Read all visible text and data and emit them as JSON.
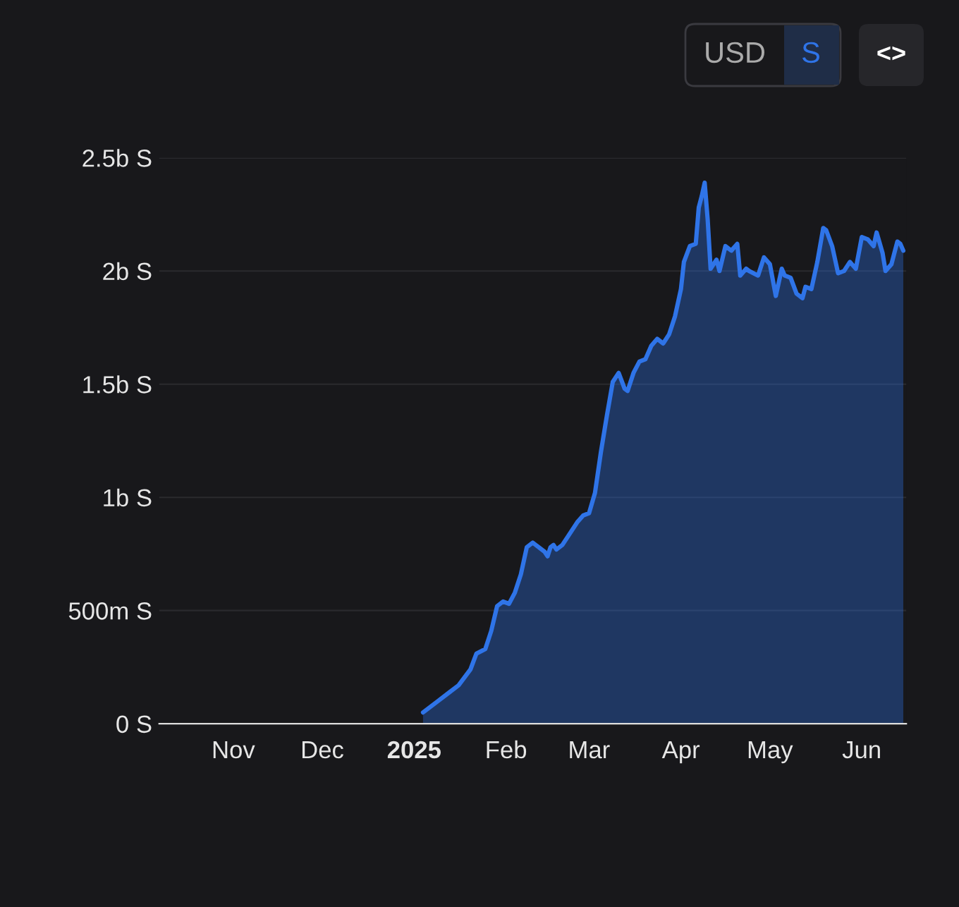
{
  "chart_data": {
    "type": "area",
    "x": [
      "2025-01-04",
      "2025-01-09",
      "2025-01-13",
      "2025-01-16",
      "2025-01-20",
      "2025-01-22",
      "2025-01-25",
      "2025-01-27",
      "2025-01-29",
      "2025-01-31",
      "2025-02-02",
      "2025-02-04",
      "2025-02-06",
      "2025-02-08",
      "2025-02-10",
      "2025-02-11",
      "2025-02-14",
      "2025-02-15",
      "2025-02-16",
      "2025-02-17",
      "2025-02-18",
      "2025-02-20",
      "2025-02-22",
      "2025-02-25",
      "2025-02-27",
      "2025-03-01",
      "2025-03-03",
      "2025-03-05",
      "2025-03-07",
      "2025-03-09",
      "2025-03-11",
      "2025-03-13",
      "2025-03-14",
      "2025-03-16",
      "2025-03-18",
      "2025-03-20",
      "2025-03-22",
      "2025-03-24",
      "2025-03-26",
      "2025-03-28",
      "2025-03-30",
      "2025-04-01",
      "2025-04-02",
      "2025-04-04",
      "2025-04-06",
      "2025-04-07",
      "2025-04-08",
      "2025-04-09",
      "2025-04-10",
      "2025-04-11",
      "2025-04-13",
      "2025-04-14",
      "2025-04-16",
      "2025-04-18",
      "2025-04-20",
      "2025-04-21",
      "2025-04-23",
      "2025-04-24",
      "2025-04-27",
      "2025-04-29",
      "2025-05-01",
      "2025-05-03",
      "2025-05-05",
      "2025-05-06",
      "2025-05-08",
      "2025-05-10",
      "2025-05-12",
      "2025-05-13",
      "2025-05-15",
      "2025-05-17",
      "2025-05-19",
      "2025-05-20",
      "2025-05-22",
      "2025-05-24",
      "2025-05-26",
      "2025-05-28",
      "2025-05-30",
      "2025-06-01",
      "2025-06-03",
      "2025-06-05",
      "2025-06-06",
      "2025-06-08",
      "2025-06-09",
      "2025-06-11",
      "2025-06-13",
      "2025-06-14",
      "2025-06-15"
    ],
    "series": [
      {
        "color": "#2f74e8",
        "values": [
          50000000,
          100000000,
          140000000,
          170000000,
          240000000,
          310000000,
          330000000,
          410000000,
          520000000,
          540000000,
          530000000,
          580000000,
          660000000,
          780000000,
          800000000,
          790000000,
          760000000,
          740000000,
          780000000,
          790000000,
          770000000,
          790000000,
          830000000,
          890000000,
          920000000,
          930000000,
          1020000000,
          1200000000,
          1360000000,
          1510000000,
          1550000000,
          1480000000,
          1470000000,
          1550000000,
          1600000000,
          1610000000,
          1670000000,
          1700000000,
          1680000000,
          1720000000,
          1800000000,
          1920000000,
          2040000000,
          2110000000,
          2120000000,
          2280000000,
          2330000000,
          2390000000,
          2230000000,
          2010000000,
          2050000000,
          2000000000,
          2110000000,
          2090000000,
          2120000000,
          1980000000,
          2010000000,
          2000000000,
          1980000000,
          2060000000,
          2030000000,
          1890000000,
          2010000000,
          1980000000,
          1970000000,
          1900000000,
          1880000000,
          1930000000,
          1920000000,
          2040000000,
          2190000000,
          2180000000,
          2110000000,
          1990000000,
          2000000000,
          2040000000,
          2010000000,
          2150000000,
          2140000000,
          2110000000,
          2170000000,
          2080000000,
          2000000000,
          2030000000,
          2130000000,
          2120000000,
          2090000000
        ]
      }
    ],
    "xlim": [
      "2024-10-07",
      "2025-06-16"
    ],
    "xticks": [
      {
        "value": "2024-11-01",
        "label": "Nov"
      },
      {
        "value": "2024-12-01",
        "label": "Dec"
      },
      {
        "value": "2025-01-01",
        "label": "2025"
      },
      {
        "value": "2025-02-01",
        "label": "Feb"
      },
      {
        "value": "2025-03-01",
        "label": "Mar"
      },
      {
        "value": "2025-04-01",
        "label": "Apr"
      },
      {
        "value": "2025-05-01",
        "label": "May"
      },
      {
        "value": "2025-06-01",
        "label": "Jun"
      }
    ],
    "ylim": [
      0,
      2500000000
    ],
    "yticks": [
      {
        "value": 0,
        "label": "0 S"
      },
      {
        "value": 500000000,
        "label": "500m S"
      },
      {
        "value": 1000000000,
        "label": "1b S"
      },
      {
        "value": 1500000000,
        "label": "1.5b S"
      },
      {
        "value": 2000000000,
        "label": "2b S"
      },
      {
        "value": 2500000000,
        "label": "2.5b S"
      }
    ],
    "grid": "y",
    "annotations": [
      "USD",
      "S",
      "<>"
    ]
  }
}
